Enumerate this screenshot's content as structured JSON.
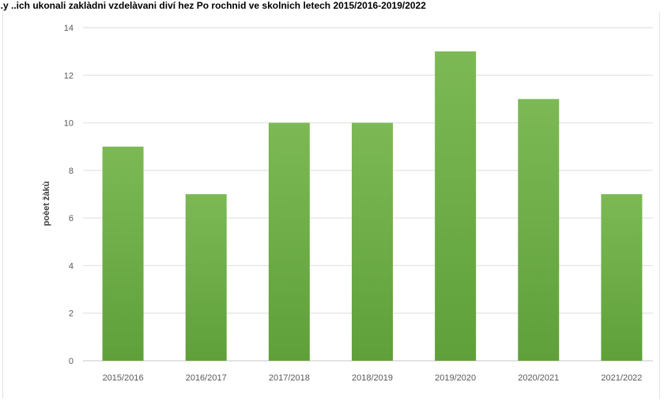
{
  "chart_data": {
    "type": "bar",
    "title": "...y ..ich ukonali zaklàdni vzdelàvani diví hez Po rochnid ve skolnich letech 2015/2016-2019/2022",
    "xlabel": "",
    "ylabel": "poèet žàkù",
    "categories": [
      "2015/2016",
      "2016/2017",
      "2017/2018",
      "2018/2019",
      "2019/2020",
      "2020/2021",
      "2021/2022"
    ],
    "values": [
      9,
      7,
      10,
      10,
      13,
      11,
      7
    ],
    "ylim": [
      0,
      14
    ],
    "yticks": [
      "0",
      "2",
      "4",
      "6",
      "8",
      "10",
      "12",
      "14"
    ],
    "grid": true,
    "colors": {
      "bar_top": "#7cb955",
      "bar_bottom": "#5fa03a",
      "grid": "#e6e6e6",
      "axis": "#d9d9d9"
    }
  }
}
